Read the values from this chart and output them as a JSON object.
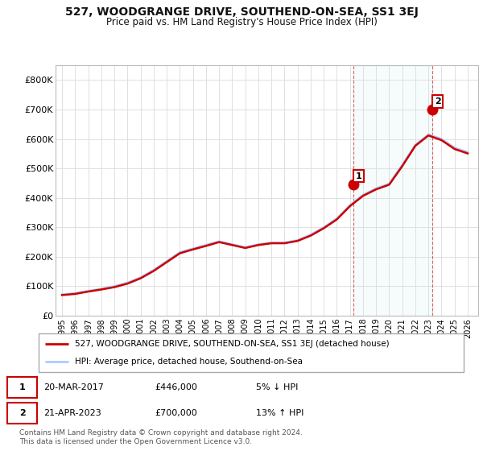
{
  "title": "527, WOODGRANGE DRIVE, SOUTHEND-ON-SEA, SS1 3EJ",
  "subtitle": "Price paid vs. HM Land Registry's House Price Index (HPI)",
  "ylim": [
    0,
    850000
  ],
  "yticks": [
    0,
    100000,
    200000,
    300000,
    400000,
    500000,
    600000,
    700000,
    800000
  ],
  "ytick_labels": [
    "£0",
    "£100K",
    "£200K",
    "£300K",
    "£400K",
    "£500K",
    "£600K",
    "£700K",
    "£800K"
  ],
  "hpi_color": "#aaccff",
  "price_color": "#cc0000",
  "background_color": "#ffffff",
  "grid_color": "#e0e0e0",
  "legend_label_red": "527, WOODGRANGE DRIVE, SOUTHEND-ON-SEA, SS1 3EJ (detached house)",
  "legend_label_blue": "HPI: Average price, detached house, Southend-on-Sea",
  "sale1_date": "20-MAR-2017",
  "sale1_price": "£446,000",
  "sale1_hpi": "5% ↓ HPI",
  "sale2_date": "21-APR-2023",
  "sale2_price": "£700,000",
  "sale2_hpi": "13% ↑ HPI",
  "footer": "Contains HM Land Registry data © Crown copyright and database right 2024.\nThis data is licensed under the Open Government Licence v3.0.",
  "years": [
    1995,
    1996,
    1997,
    1998,
    1999,
    2000,
    2001,
    2002,
    2003,
    2004,
    2005,
    2006,
    2007,
    2008,
    2009,
    2010,
    2011,
    2012,
    2013,
    2014,
    2015,
    2016,
    2017,
    2018,
    2019,
    2020,
    2021,
    2022,
    2023,
    2024,
    2025,
    2026
  ],
  "hpi_values": [
    72000,
    76000,
    84000,
    91000,
    100000,
    112000,
    130000,
    155000,
    185000,
    215000,
    228000,
    240000,
    252000,
    242000,
    232000,
    242000,
    248000,
    248000,
    256000,
    275000,
    300000,
    330000,
    375000,
    410000,
    432000,
    448000,
    512000,
    580000,
    615000,
    600000,
    570000,
    555000
  ],
  "price_values": [
    70000,
    74000,
    82000,
    89000,
    97000,
    109000,
    127000,
    152000,
    182000,
    212000,
    225000,
    237000,
    250000,
    240000,
    230000,
    240000,
    246000,
    246000,
    254000,
    272000,
    297000,
    327000,
    372000,
    407000,
    429000,
    445000,
    508000,
    577000,
    612000,
    596000,
    566000,
    551000
  ],
  "sale1_x": 2017.25,
  "sale1_y": 446000,
  "sale2_x": 2023.3,
  "sale2_y": 700000,
  "xtick_years": [
    1995,
    1996,
    1997,
    1998,
    1999,
    2000,
    2001,
    2002,
    2003,
    2004,
    2005,
    2006,
    2007,
    2008,
    2009,
    2010,
    2011,
    2012,
    2013,
    2014,
    2015,
    2016,
    2017,
    2018,
    2019,
    2020,
    2021,
    2022,
    2023,
    2024,
    2025,
    2026
  ],
  "xlim": [
    1994.5,
    2026.8
  ]
}
